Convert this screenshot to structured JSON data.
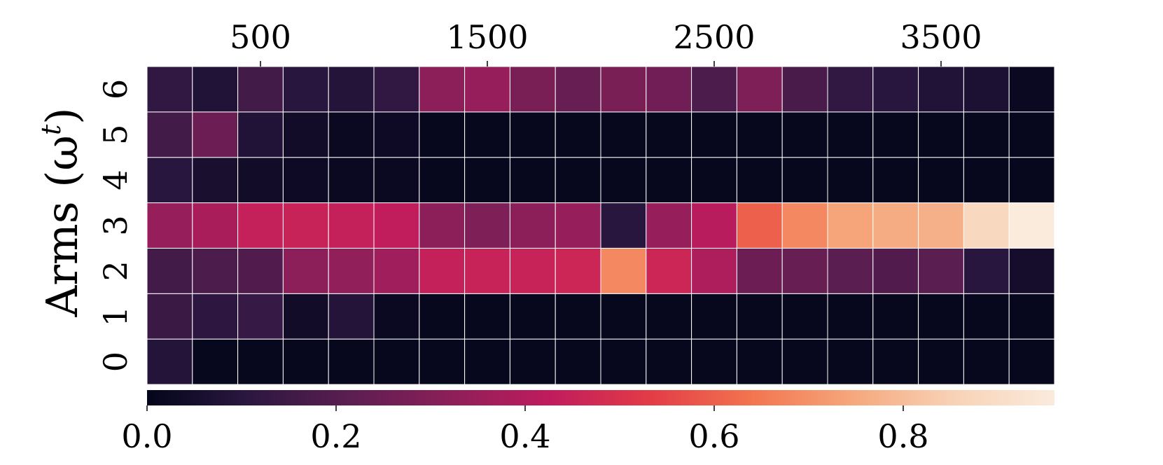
{
  "chart_data": {
    "type": "heatmap",
    "xlabel": "",
    "ylabel": "Arms (ω",
    "ylabel_superscript": "t",
    "ylabel_close": ")",
    "x_tick_labels": [
      "500",
      "1500",
      "2500",
      "3500"
    ],
    "x_tick_positions": [
      500,
      1500,
      2500,
      3500
    ],
    "x_range": [
      0,
      4000
    ],
    "n_columns": 20,
    "rows": [
      "0",
      "1",
      "2",
      "3",
      "4",
      "5",
      "6"
    ],
    "values": {
      "6": [
        0.12,
        0.08,
        0.16,
        0.1,
        0.09,
        0.12,
        0.32,
        0.34,
        0.28,
        0.24,
        0.28,
        0.26,
        0.18,
        0.29,
        0.17,
        0.12,
        0.1,
        0.08,
        0.07,
        0.02
      ],
      "5": [
        0.16,
        0.25,
        0.08,
        0.04,
        0.02,
        0.03,
        0.01,
        0.01,
        0.01,
        0.01,
        0.01,
        0.01,
        0.01,
        0.01,
        0.01,
        0.01,
        0.01,
        0.01,
        0.01,
        0.01
      ],
      "4": [
        0.1,
        0.06,
        0.04,
        0.03,
        0.02,
        0.02,
        0.01,
        0.01,
        0.01,
        0.01,
        0.01,
        0.01,
        0.01,
        0.01,
        0.01,
        0.01,
        0.01,
        0.01,
        0.01,
        0.01
      ],
      "3": [
        0.34,
        0.38,
        0.44,
        0.45,
        0.44,
        0.43,
        0.32,
        0.29,
        0.32,
        0.34,
        0.1,
        0.34,
        0.41,
        0.6,
        0.68,
        0.74,
        0.76,
        0.77,
        0.88,
        0.96
      ],
      "2": [
        0.16,
        0.18,
        0.19,
        0.32,
        0.33,
        0.36,
        0.44,
        0.45,
        0.45,
        0.46,
        0.68,
        0.46,
        0.39,
        0.25,
        0.24,
        0.21,
        0.19,
        0.21,
        0.1,
        0.05
      ],
      "1": [
        0.14,
        0.11,
        0.13,
        0.04,
        0.09,
        0.02,
        0.01,
        0.01,
        0.01,
        0.01,
        0.01,
        0.01,
        0.01,
        0.01,
        0.01,
        0.01,
        0.01,
        0.01,
        0.01,
        0.01
      ],
      "0": [
        0.09,
        0.01,
        0.01,
        0.01,
        0.01,
        0.01,
        0.01,
        0.01,
        0.01,
        0.01,
        0.01,
        0.01,
        0.01,
        0.01,
        0.01,
        0.01,
        0.01,
        0.01,
        0.01,
        0.01
      ]
    },
    "colorbar": {
      "range": [
        0.0,
        0.96
      ],
      "tick_values": [
        0.0,
        0.2,
        0.4,
        0.6,
        0.8
      ],
      "tick_labels": [
        "0.0",
        "0.2",
        "0.4",
        "0.6",
        "0.8"
      ],
      "colormap": "rocket",
      "colormap_stops": [
        "#03051a",
        "#2b1740",
        "#5b1e51",
        "#8c1f59",
        "#c01c5d",
        "#e33c47",
        "#f2754f",
        "#f6a77c",
        "#f8d2b6",
        "#faebdd"
      ]
    },
    "cell_border_color": "#ffffff",
    "grid": false,
    "legend": "colorbar-bottom"
  }
}
